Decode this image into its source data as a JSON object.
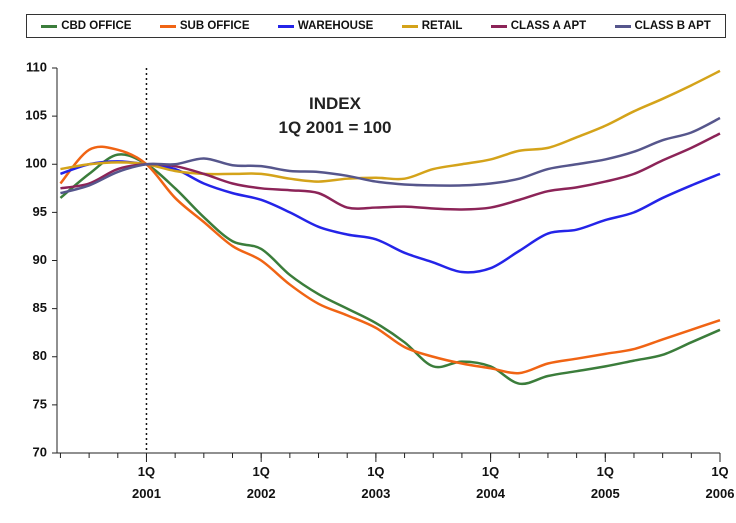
{
  "chart_data": {
    "type": "line",
    "annotation": "INDEX\n1Q 2001 = 100",
    "x": [
      2000.25,
      2000.5,
      2000.75,
      2001,
      2001.25,
      2001.5,
      2001.75,
      2002,
      2002.25,
      2002.5,
      2002.75,
      2003,
      2003.25,
      2003.5,
      2003.75,
      2004,
      2004.25,
      2004.5,
      2004.75,
      2005,
      2005.25,
      2005.5,
      2005.75,
      2006
    ],
    "xlim": [
      2000.22,
      2006
    ],
    "xticks": [
      {
        "value": 2001,
        "label": "1Q\n2001"
      },
      {
        "value": 2002,
        "label": "1Q\n2002"
      },
      {
        "value": 2003,
        "label": "1Q\n2003"
      },
      {
        "value": 2004,
        "label": "1Q\n2004"
      },
      {
        "value": 2005,
        "label": "1Q\n2005"
      },
      {
        "value": 2006,
        "label": "1Q\n2006"
      }
    ],
    "ylim": [
      70,
      110
    ],
    "yticks": [
      70,
      75,
      80,
      85,
      90,
      95,
      100,
      105,
      110
    ],
    "reference_x": 2001,
    "grid": false,
    "legend": "top",
    "series": [
      {
        "name": "CBD OFFICE",
        "color": "#3b7d3b",
        "values": [
          96.5,
          99,
          101,
          100,
          97.5,
          94.5,
          92,
          91.2,
          88.5,
          86.5,
          85,
          83.5,
          81.5,
          79,
          79.5,
          79,
          77.2,
          78,
          78.5,
          79,
          79.6,
          80.2,
          81.5,
          82.8
        ]
      },
      {
        "name": "SUB OFFICE",
        "color": "#f06414",
        "values": [
          98,
          101.5,
          101.5,
          100,
          96.5,
          94,
          91.5,
          90,
          87.5,
          85.5,
          84.3,
          83,
          81,
          80,
          79.3,
          78.8,
          78.3,
          79.3,
          79.8,
          80.3,
          80.8,
          81.8,
          82.8,
          83.8
        ]
      },
      {
        "name": "WAREHOUSE",
        "color": "#2424e8",
        "values": [
          99,
          100,
          100.3,
          100,
          99.5,
          98,
          97,
          96.3,
          95,
          93.5,
          92.7,
          92.2,
          90.8,
          89.8,
          88.8,
          89.2,
          91,
          92.8,
          93.2,
          94.2,
          95,
          96.5,
          97.8,
          99
        ]
      },
      {
        "name": "RETAIL",
        "color": "#d4a31a",
        "values": [
          99.5,
          100,
          100.2,
          100,
          99.3,
          99,
          99,
          99,
          98.5,
          98.2,
          98.5,
          98.6,
          98.5,
          99.5,
          100,
          100.5,
          101.4,
          101.7,
          102.8,
          104,
          105.5,
          106.8,
          108.2,
          109.7
        ]
      },
      {
        "name": "CLASS A APT",
        "color": "#8c2458",
        "values": [
          97.5,
          98,
          99.5,
          100,
          99.8,
          99,
          98,
          97.5,
          97.3,
          97,
          95.5,
          95.5,
          95.6,
          95.4,
          95.3,
          95.5,
          96.3,
          97.2,
          97.6,
          98.2,
          99,
          100.4,
          101.7,
          103.2
        ]
      },
      {
        "name": "CLASS B APT",
        "color": "#56568c",
        "values": [
          97,
          97.8,
          99.2,
          100,
          100,
          100.6,
          99.9,
          99.8,
          99.3,
          99.2,
          98.8,
          98.2,
          97.9,
          97.8,
          97.8,
          98,
          98.5,
          99.5,
          100,
          100.5,
          101.3,
          102.5,
          103.3,
          104.8
        ]
      }
    ]
  }
}
